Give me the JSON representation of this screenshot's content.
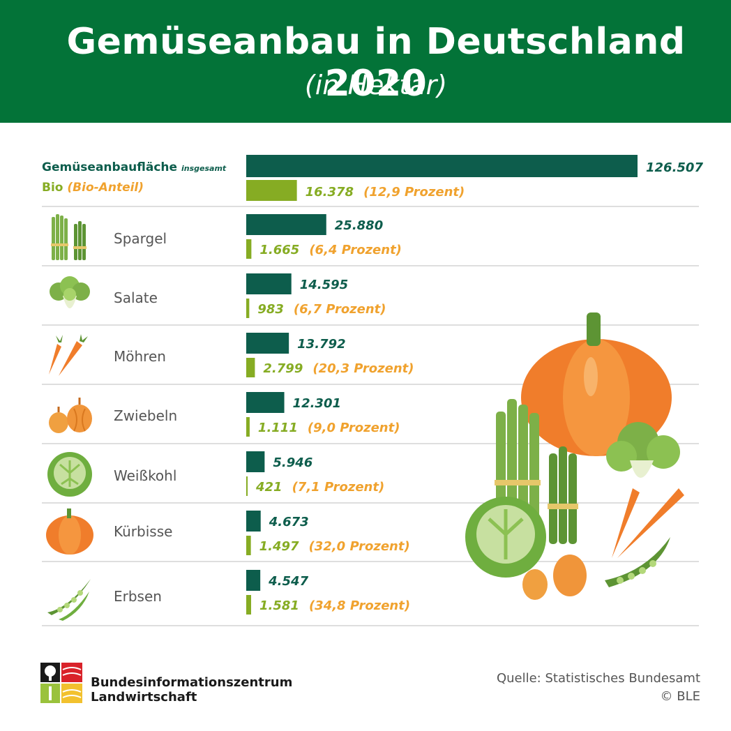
{
  "header": {
    "title": "Gemüseanbau in Deutschland 2020",
    "subtitle": "(in Hektar)"
  },
  "legend": {
    "total_label": "Gemüseanbaufläche",
    "total_suffix": "insgesamt",
    "bio_label": "Bio",
    "bio_suffix": "(Bio-Anteil)"
  },
  "colors": {
    "header_bg": "#037338",
    "total_bar": "#0d5d4c",
    "bio_bar": "#86ac23",
    "percent_text": "#f0a22e"
  },
  "icons": [
    "asparagus-icon",
    "lettuce-icon",
    "carrot-icon",
    "onion-icon",
    "cabbage-icon",
    "pumpkin-icon",
    "peas-icon"
  ],
  "chart_data": {
    "type": "bar",
    "orientation": "horizontal",
    "title": "Gemüseanbau in Deutschland 2020",
    "subtitle": "(in Hektar)",
    "grid": false,
    "legend_position": "top-left",
    "categories": [
      "Gemüseanbaufläche insgesamt",
      "Spargel",
      "Salate",
      "Möhren",
      "Zwiebeln",
      "Weißkohl",
      "Kürbisse",
      "Erbsen"
    ],
    "series": [
      {
        "name": "Gemüseanbaufläche insgesamt",
        "values": [
          126507,
          25880,
          14595,
          13792,
          12301,
          5946,
          4673,
          4547
        ],
        "labels": [
          "126.507",
          "25.880",
          "14.595",
          "13.792",
          "12.301",
          "5.946",
          "4.673",
          "4.547"
        ]
      },
      {
        "name": "Bio (Bio-Anteil)",
        "values": [
          16378,
          1665,
          983,
          2799,
          1111,
          421,
          1497,
          1581
        ],
        "labels": [
          "16.378",
          "1.665",
          "983",
          "2.799",
          "1.111",
          "421",
          "1.497",
          "1.581"
        ],
        "share_labels": [
          "(12,9 Prozent)",
          "(6,4 Prozent)",
          "(6,7 Prozent)",
          "(20,3 Prozent)",
          "(9,0 Prozent)",
          "(7,1 Prozent)",
          "(32,0 Prozent)",
          "(34,8 Prozent)"
        ]
      }
    ],
    "xlim": [
      0,
      126507
    ]
  },
  "footer": {
    "org_line1": "Bundesinformationszentrum",
    "org_line2": "Landwirtschaft",
    "source": "Quelle: Statistisches Bundesamt",
    "copyright": "© BLE"
  }
}
